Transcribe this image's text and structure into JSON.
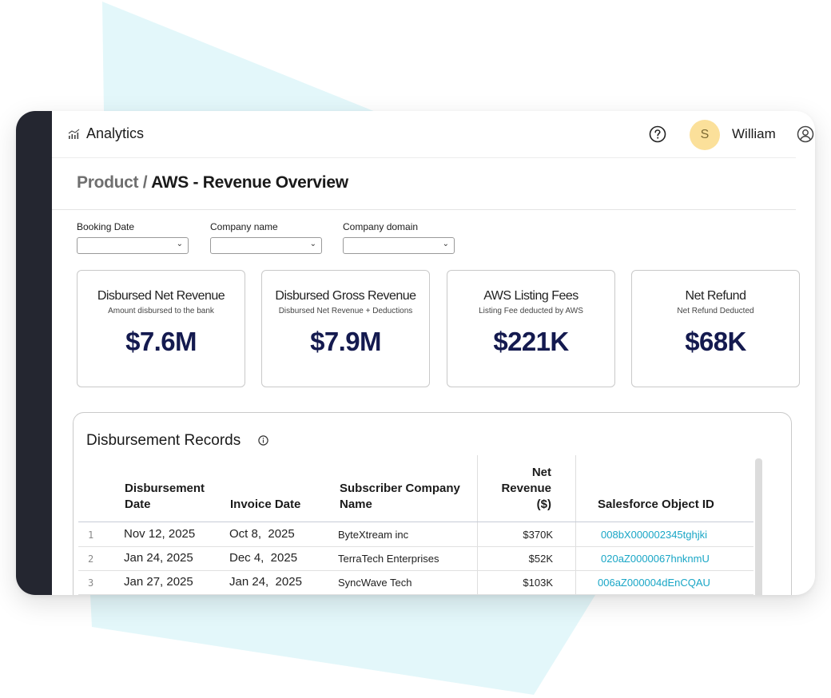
{
  "app": {
    "title": "Analytics",
    "icon": "bar-chart-icon"
  },
  "header": {
    "help_icon": "help-circle-icon",
    "avatar_initial": "S",
    "user_name": "William",
    "user_icon": "user-circle-icon"
  },
  "breadcrumb": {
    "parent": "Product /",
    "current": "AWS - Revenue Overview"
  },
  "filters": [
    {
      "label": "Booking Date",
      "value": ""
    },
    {
      "label": "Company name",
      "value": ""
    },
    {
      "label": "Company domain",
      "value": ""
    }
  ],
  "kpis": [
    {
      "title": "Disbursed Net Revenue",
      "subtitle": "Amount disbursed to the bank",
      "value": "$7.6M"
    },
    {
      "title": "Disbursed Gross Revenue",
      "subtitle": "Disbursed Net Revenue + Deductions",
      "value": "$7.9M"
    },
    {
      "title": "AWS Listing Fees",
      "subtitle": "Listing Fee deducted by AWS",
      "value": "$221K"
    },
    {
      "title": "Net Refund",
      "subtitle": "Net Refund Deducted",
      "value": "$68K"
    }
  ],
  "records": {
    "title": "Disbursement Records",
    "columns": {
      "disbursement_date_1": "Disbursement",
      "disbursement_date_2": "Date",
      "invoice_date": "Invoice Date",
      "company_1": "Subscriber Company",
      "company_2": "Name",
      "net_revenue_1": "Net",
      "net_revenue_2": "Revenue",
      "net_revenue_3": "($)",
      "salesforce_id": "Salesforce Object ID"
    },
    "rows": [
      {
        "index": "1",
        "disbursement_date": "Nov 12, 2025",
        "invoice_date": "Oct 8,  2025",
        "company": "ByteXtream inc",
        "net_revenue": "$370K",
        "salesforce_id": "008bX000002345tghjki"
      },
      {
        "index": "2",
        "disbursement_date": "Jan 24, 2025",
        "invoice_date": "Dec 4,  2025",
        "company": "TerraTech Enterprises",
        "net_revenue": "$52K",
        "salesforce_id": "020aZ0000067hnknmU"
      },
      {
        "index": "3",
        "disbursement_date": "Jan 27, 2025",
        "invoice_date": "Jan 24,  2025",
        "company": "SyncWave Tech",
        "net_revenue": "$103K",
        "salesforce_id": "006aZ000004dEnCQAU"
      }
    ]
  },
  "colors": {
    "accent_link": "#19a6c6",
    "kpi_value": "#141a4f",
    "sidebar": "#242630",
    "avatar_bg": "#fbe09a",
    "decor": "#e3f7fa"
  }
}
